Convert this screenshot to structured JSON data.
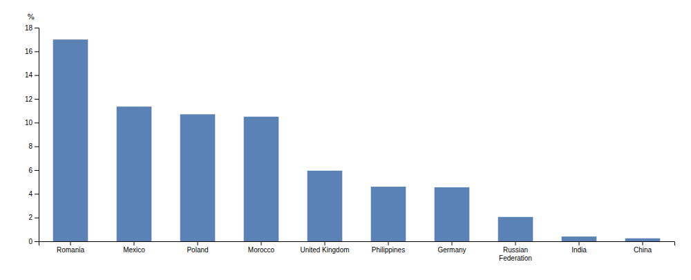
{
  "chart_data": {
    "type": "bar",
    "ylabel": "%",
    "categories": [
      "Romania",
      "Mexico",
      "Poland",
      "Morocco",
      "United Kingdom",
      "Philippines",
      "Germany",
      "Russian\nFederation",
      "India",
      "China"
    ],
    "values": [
      17.0,
      11.35,
      10.7,
      10.5,
      5.95,
      4.6,
      4.55,
      2.05,
      0.4,
      0.25
    ],
    "color": "#5b82b4",
    "ylim": [
      0,
      18
    ],
    "yticks": [
      0,
      2,
      4,
      6,
      8,
      10,
      12,
      14,
      16,
      18
    ],
    "grid": false
  }
}
